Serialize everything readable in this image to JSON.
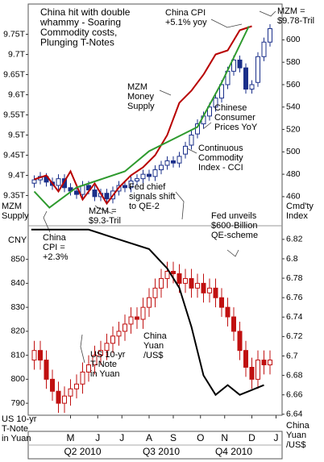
{
  "chart_data": [
    {
      "type": "candlestick",
      "ylabel": [
        "MZM",
        "Supply"
      ],
      "y2label": [
        "Cmd'ty",
        "Index"
      ],
      "xlim": [
        0,
        42
      ],
      "ylim": [
        9.275,
        9.825
      ],
      "yticks": [
        {
          "value": 9.75,
          "label": "9.75T"
        },
        {
          "value": 9.7,
          "label": "9.7T"
        },
        {
          "value": 9.65,
          "label": "9.65T"
        },
        {
          "value": 9.6,
          "label": "9.6T"
        },
        {
          "value": 9.55,
          "label": "9.55T"
        },
        {
          "value": 9.5,
          "label": "9.5T"
        },
        {
          "value": 9.45,
          "label": "9.45T"
        },
        {
          "value": 9.4,
          "label": "9.4T"
        },
        {
          "value": 9.35,
          "label": "9.35T"
        }
      ],
      "y2lim": [
        434,
        632
      ],
      "y2ticks": [
        600,
        580,
        560,
        540,
        520,
        500,
        480,
        460
      ],
      "ylabel_color": "#cc0000",
      "y2label_color": "#1a3d99",
      "candles": {
        "axis": "y2",
        "color": "#1a2f8a",
        "x": [
          1,
          2,
          3,
          4,
          5,
          6,
          7,
          8,
          9,
          10,
          11,
          12,
          13,
          14,
          15,
          16,
          17,
          18,
          19,
          20,
          21,
          22,
          23,
          24,
          25,
          26,
          27,
          28,
          29,
          30,
          31,
          32,
          33,
          34,
          35,
          36,
          37,
          38,
          39,
          40
        ],
        "open": [
          472,
          475,
          478,
          473,
          470,
          476,
          468,
          465,
          462,
          470,
          466,
          460,
          463,
          458,
          465,
          470,
          468,
          474,
          476,
          480,
          478,
          484,
          488,
          492,
          490,
          498,
          506,
          516,
          525,
          532,
          540,
          548,
          560,
          572,
          582,
          575,
          556,
          562,
          585,
          598
        ],
        "high": [
          479,
          482,
          481,
          477,
          480,
          480,
          472,
          469,
          474,
          474,
          470,
          467,
          467,
          469,
          474,
          474,
          478,
          480,
          484,
          484,
          488,
          492,
          496,
          496,
          500,
          509,
          519,
          529,
          536,
          544,
          552,
          564,
          576,
          586,
          586,
          579,
          564,
          589,
          602,
          614
        ],
        "low": [
          468,
          471,
          469,
          466,
          466,
          464,
          461,
          458,
          458,
          462,
          456,
          456,
          454,
          454,
          461,
          464,
          464,
          470,
          472,
          474,
          474,
          480,
          484,
          486,
          486,
          494,
          502,
          512,
          521,
          528,
          536,
          544,
          556,
          568,
          571,
          552,
          552,
          558,
          581,
          594
        ],
        "close": [
          475,
          478,
          473,
          470,
          476,
          468,
          465,
          462,
          470,
          466,
          460,
          463,
          458,
          465,
          470,
          468,
          474,
          476,
          480,
          478,
          484,
          488,
          492,
          490,
          496,
          505,
          515,
          525,
          532,
          540,
          548,
          560,
          572,
          582,
          575,
          556,
          560,
          585,
          598,
          610
        ]
      },
      "series": [
        {
          "color": "#b80000",
          "x": [
            1,
            3,
            5,
            7,
            9,
            11,
            13,
            15,
            17,
            19,
            21,
            23,
            25,
            27,
            29,
            31,
            33,
            35,
            37
          ],
          "values": [
            9.39,
            9.4,
            9.36,
            9.41,
            9.34,
            9.38,
            9.33,
            9.37,
            9.4,
            9.42,
            9.45,
            9.5,
            9.58,
            9.61,
            9.65,
            9.7,
            9.71,
            9.76,
            9.77
          ]
        },
        {
          "color": "#2e9a2e",
          "x": [
            1,
            3.5,
            8,
            12,
            16,
            20,
            24,
            28,
            32,
            36.5
          ],
          "values": [
            9.36,
            9.32,
            9.37,
            9.39,
            9.41,
            9.46,
            9.49,
            9.52,
            9.63,
            9.77
          ]
        }
      ]
    },
    {
      "type": "candlestick",
      "corner_label": "CNY",
      "ylabel": [
        "US 10-yr",
        "T-Note",
        "in Yuan"
      ],
      "y2label": [
        "China",
        "Yuan",
        "/US$"
      ],
      "ylabel_color": "#cc0000",
      "y2label_color": "#000000",
      "xlim": [
        0,
        42
      ],
      "xticks": [
        {
          "value": 7,
          "label": "M"
        },
        {
          "value": 11.5,
          "label": "J"
        },
        {
          "value": 15.5,
          "label": "J"
        },
        {
          "value": 20,
          "label": "A"
        },
        {
          "value": 24,
          "label": "S"
        },
        {
          "value": 28.5,
          "label": "O"
        },
        {
          "value": 32.5,
          "label": "N"
        },
        {
          "value": 37,
          "label": "D"
        },
        {
          "value": 41,
          "label": "J"
        }
      ],
      "quarter_ticks": [
        {
          "value": 9,
          "label": "Q2 2010"
        },
        {
          "value": 22,
          "label": "Q3 2010"
        },
        {
          "value": 34,
          "label": "Q4 2010"
        }
      ],
      "ylim": [
        785,
        864
      ],
      "yticks": [
        850,
        840,
        830,
        820,
        810,
        800,
        790
      ],
      "y2lim": [
        6.639,
        6.834
      ],
      "y2ticks": [
        6.82,
        6.8,
        6.78,
        6.76,
        6.74,
        6.72,
        6.7,
        6.68,
        6.66,
        6.64
      ],
      "candles": {
        "color": "#c01010",
        "x": [
          1,
          2,
          3,
          4,
          5,
          6,
          7,
          8,
          9,
          10,
          11,
          12,
          13,
          14,
          15,
          16,
          17,
          18,
          19,
          20,
          21,
          22,
          23,
          24,
          25,
          26,
          27,
          28,
          29,
          30,
          31,
          32,
          33,
          34,
          35,
          36,
          37,
          38,
          39,
          40
        ],
        "open": [
          808,
          812,
          808,
          800,
          795,
          790,
          793,
          796,
          798,
          803,
          806,
          810,
          812,
          815,
          818,
          820,
          823,
          826,
          825,
          830,
          834,
          838,
          842,
          845,
          844,
          840,
          842,
          838,
          840,
          836,
          838,
          834,
          830,
          826,
          820,
          812,
          805,
          800,
          808,
          806
        ],
        "high": [
          816,
          816,
          812,
          804,
          799,
          797,
          800,
          802,
          807,
          810,
          814,
          816,
          819,
          822,
          824,
          827,
          830,
          830,
          834,
          838,
          842,
          846,
          849,
          849,
          848,
          846,
          846,
          844,
          844,
          842,
          842,
          838,
          834,
          830,
          824,
          816,
          809,
          812,
          812,
          812
        ],
        "low": [
          804,
          804,
          796,
          791,
          786,
          786,
          789,
          792,
          794,
          799,
          802,
          806,
          808,
          811,
          814,
          816,
          819,
          821,
          821,
          826,
          830,
          834,
          838,
          840,
          836,
          836,
          834,
          834,
          832,
          832,
          830,
          826,
          822,
          816,
          808,
          801,
          796,
          796,
          802,
          802
        ],
        "close": [
          812,
          808,
          800,
          795,
          790,
          793,
          796,
          798,
          803,
          806,
          810,
          812,
          815,
          818,
          820,
          823,
          826,
          825,
          830,
          834,
          838,
          842,
          845,
          844,
          840,
          842,
          838,
          840,
          836,
          838,
          834,
          830,
          826,
          820,
          812,
          805,
          800,
          808,
          806,
          808
        ]
      },
      "series": [
        {
          "axis": "y2",
          "color": "#000000",
          "x": [
            0.5,
            5,
            10,
            15,
            20,
            23,
            25,
            27,
            29,
            31,
            33,
            35,
            37,
            39
          ],
          "values": [
            6.83,
            6.83,
            6.83,
            6.82,
            6.81,
            6.79,
            6.77,
            6.73,
            6.68,
            6.66,
            6.67,
            6.66,
            6.665,
            6.67
          ]
        }
      ]
    }
  ],
  "annotations": [
    {
      "lines": [
        "China hit with double",
        "whammy - Soaring",
        "Commodity costs,",
        "Plunging T-Notes"
      ],
      "color": "#000000"
    },
    {
      "lines": [
        "China CPI",
        "+5.1% yoy"
      ],
      "color": "#000000"
    },
    {
      "lines": [
        "MZM =",
        "$9.78-Tril"
      ],
      "color": "#000000"
    },
    {
      "lines": [
        "MZM",
        "Money",
        "Supply"
      ],
      "color": "#cc0000"
    },
    {
      "lines": [
        "Chinese",
        "Consumer",
        "Prices YoY"
      ],
      "color": "#2e9a2e"
    },
    {
      "lines": [
        "Continuous",
        "Commodity",
        "Index - CCI"
      ],
      "color": "#1a3d99"
    },
    {
      "lines": [
        "Fed chief",
        "signals shift",
        "to QE-2"
      ],
      "color": "#000000"
    },
    {
      "lines": [
        "MZM =",
        "$9.3-Tril"
      ],
      "color": "#000000"
    },
    {
      "lines": [
        "China",
        "CPI =",
        "+2.3%"
      ],
      "color": "#000000"
    },
    {
      "lines": [
        "Fed unveils",
        "$600-Billion",
        "QE-scheme"
      ],
      "color": "#000000"
    },
    {
      "lines": [
        "US 10-yr",
        "T-Note",
        "in Yuan"
      ],
      "color": "#cc0000"
    },
    {
      "lines": [
        "China",
        "Yuan",
        "/US$"
      ],
      "color": "#000000"
    }
  ]
}
